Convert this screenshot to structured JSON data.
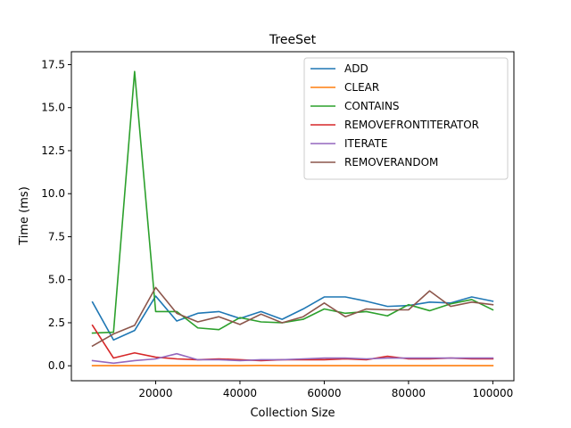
{
  "chart_data": {
    "type": "line",
    "title": "TreeSet",
    "xlabel": "Collection Size",
    "ylabel": "Time (ms)",
    "xlim": [
      0,
      105000
    ],
    "ylim": [
      -0.87,
      18.25
    ],
    "x_ticks": [
      20000,
      40000,
      60000,
      80000,
      100000
    ],
    "x_tick_labels": [
      "20000",
      "40000",
      "60000",
      "80000",
      "100000"
    ],
    "y_ticks": [
      0.0,
      2.5,
      5.0,
      7.5,
      10.0,
      12.5,
      15.0,
      17.5
    ],
    "y_tick_labels": [
      "0.0",
      "2.5",
      "5.0",
      "7.5",
      "10.0",
      "12.5",
      "15.0",
      "17.5"
    ],
    "grid": false,
    "legend_position": "top-right",
    "x": [
      5000,
      10000,
      15000,
      20000,
      25000,
      30000,
      35000,
      40000,
      45000,
      50000,
      55000,
      60000,
      65000,
      70000,
      75000,
      80000,
      85000,
      90000,
      95000,
      100000
    ],
    "series": [
      {
        "name": "ADD",
        "color": "#1f77b4",
        "values": [
          3.7,
          1.5,
          2.05,
          4.05,
          2.6,
          3.05,
          3.15,
          2.75,
          3.15,
          2.7,
          3.3,
          4.0,
          4.0,
          3.75,
          3.45,
          3.5,
          3.7,
          3.65,
          4.0,
          3.75
        ]
      },
      {
        "name": "CLEAR",
        "color": "#ff7f0e",
        "values": [
          0.01,
          0.01,
          0.01,
          0.01,
          0.01,
          0.01,
          0.01,
          0.01,
          0.02,
          0.01,
          0.01,
          0.01,
          0.01,
          0.01,
          0.01,
          0.01,
          0.01,
          0.01,
          0.01,
          0.01
        ]
      },
      {
        "name": "CONTAINS",
        "color": "#2ca02c",
        "values": [
          1.9,
          1.95,
          17.1,
          3.15,
          3.15,
          2.2,
          2.1,
          2.8,
          2.55,
          2.5,
          2.7,
          3.3,
          3.05,
          3.15,
          2.9,
          3.55,
          3.2,
          3.6,
          3.85,
          3.25
        ]
      },
      {
        "name": "REMOVEFRONTITERATOR",
        "color": "#d62728",
        "values": [
          2.35,
          0.45,
          0.75,
          0.5,
          0.4,
          0.35,
          0.4,
          0.35,
          0.3,
          0.35,
          0.35,
          0.35,
          0.4,
          0.35,
          0.55,
          0.4,
          0.4,
          0.45,
          0.4,
          0.4
        ]
      },
      {
        "name": "ITERATE",
        "color": "#9467bd",
        "values": [
          0.3,
          0.15,
          0.3,
          0.4,
          0.7,
          0.35,
          0.35,
          0.3,
          0.35,
          0.35,
          0.4,
          0.45,
          0.45,
          0.4,
          0.45,
          0.45,
          0.45,
          0.45,
          0.45,
          0.45
        ]
      },
      {
        "name": "REMOVERANDOM",
        "color": "#8c564b",
        "values": [
          1.15,
          1.85,
          2.35,
          4.55,
          3.05,
          2.55,
          2.85,
          2.4,
          3.0,
          2.5,
          2.85,
          3.65,
          2.85,
          3.3,
          3.25,
          3.25,
          4.35,
          3.45,
          3.7,
          3.55
        ]
      }
    ]
  }
}
